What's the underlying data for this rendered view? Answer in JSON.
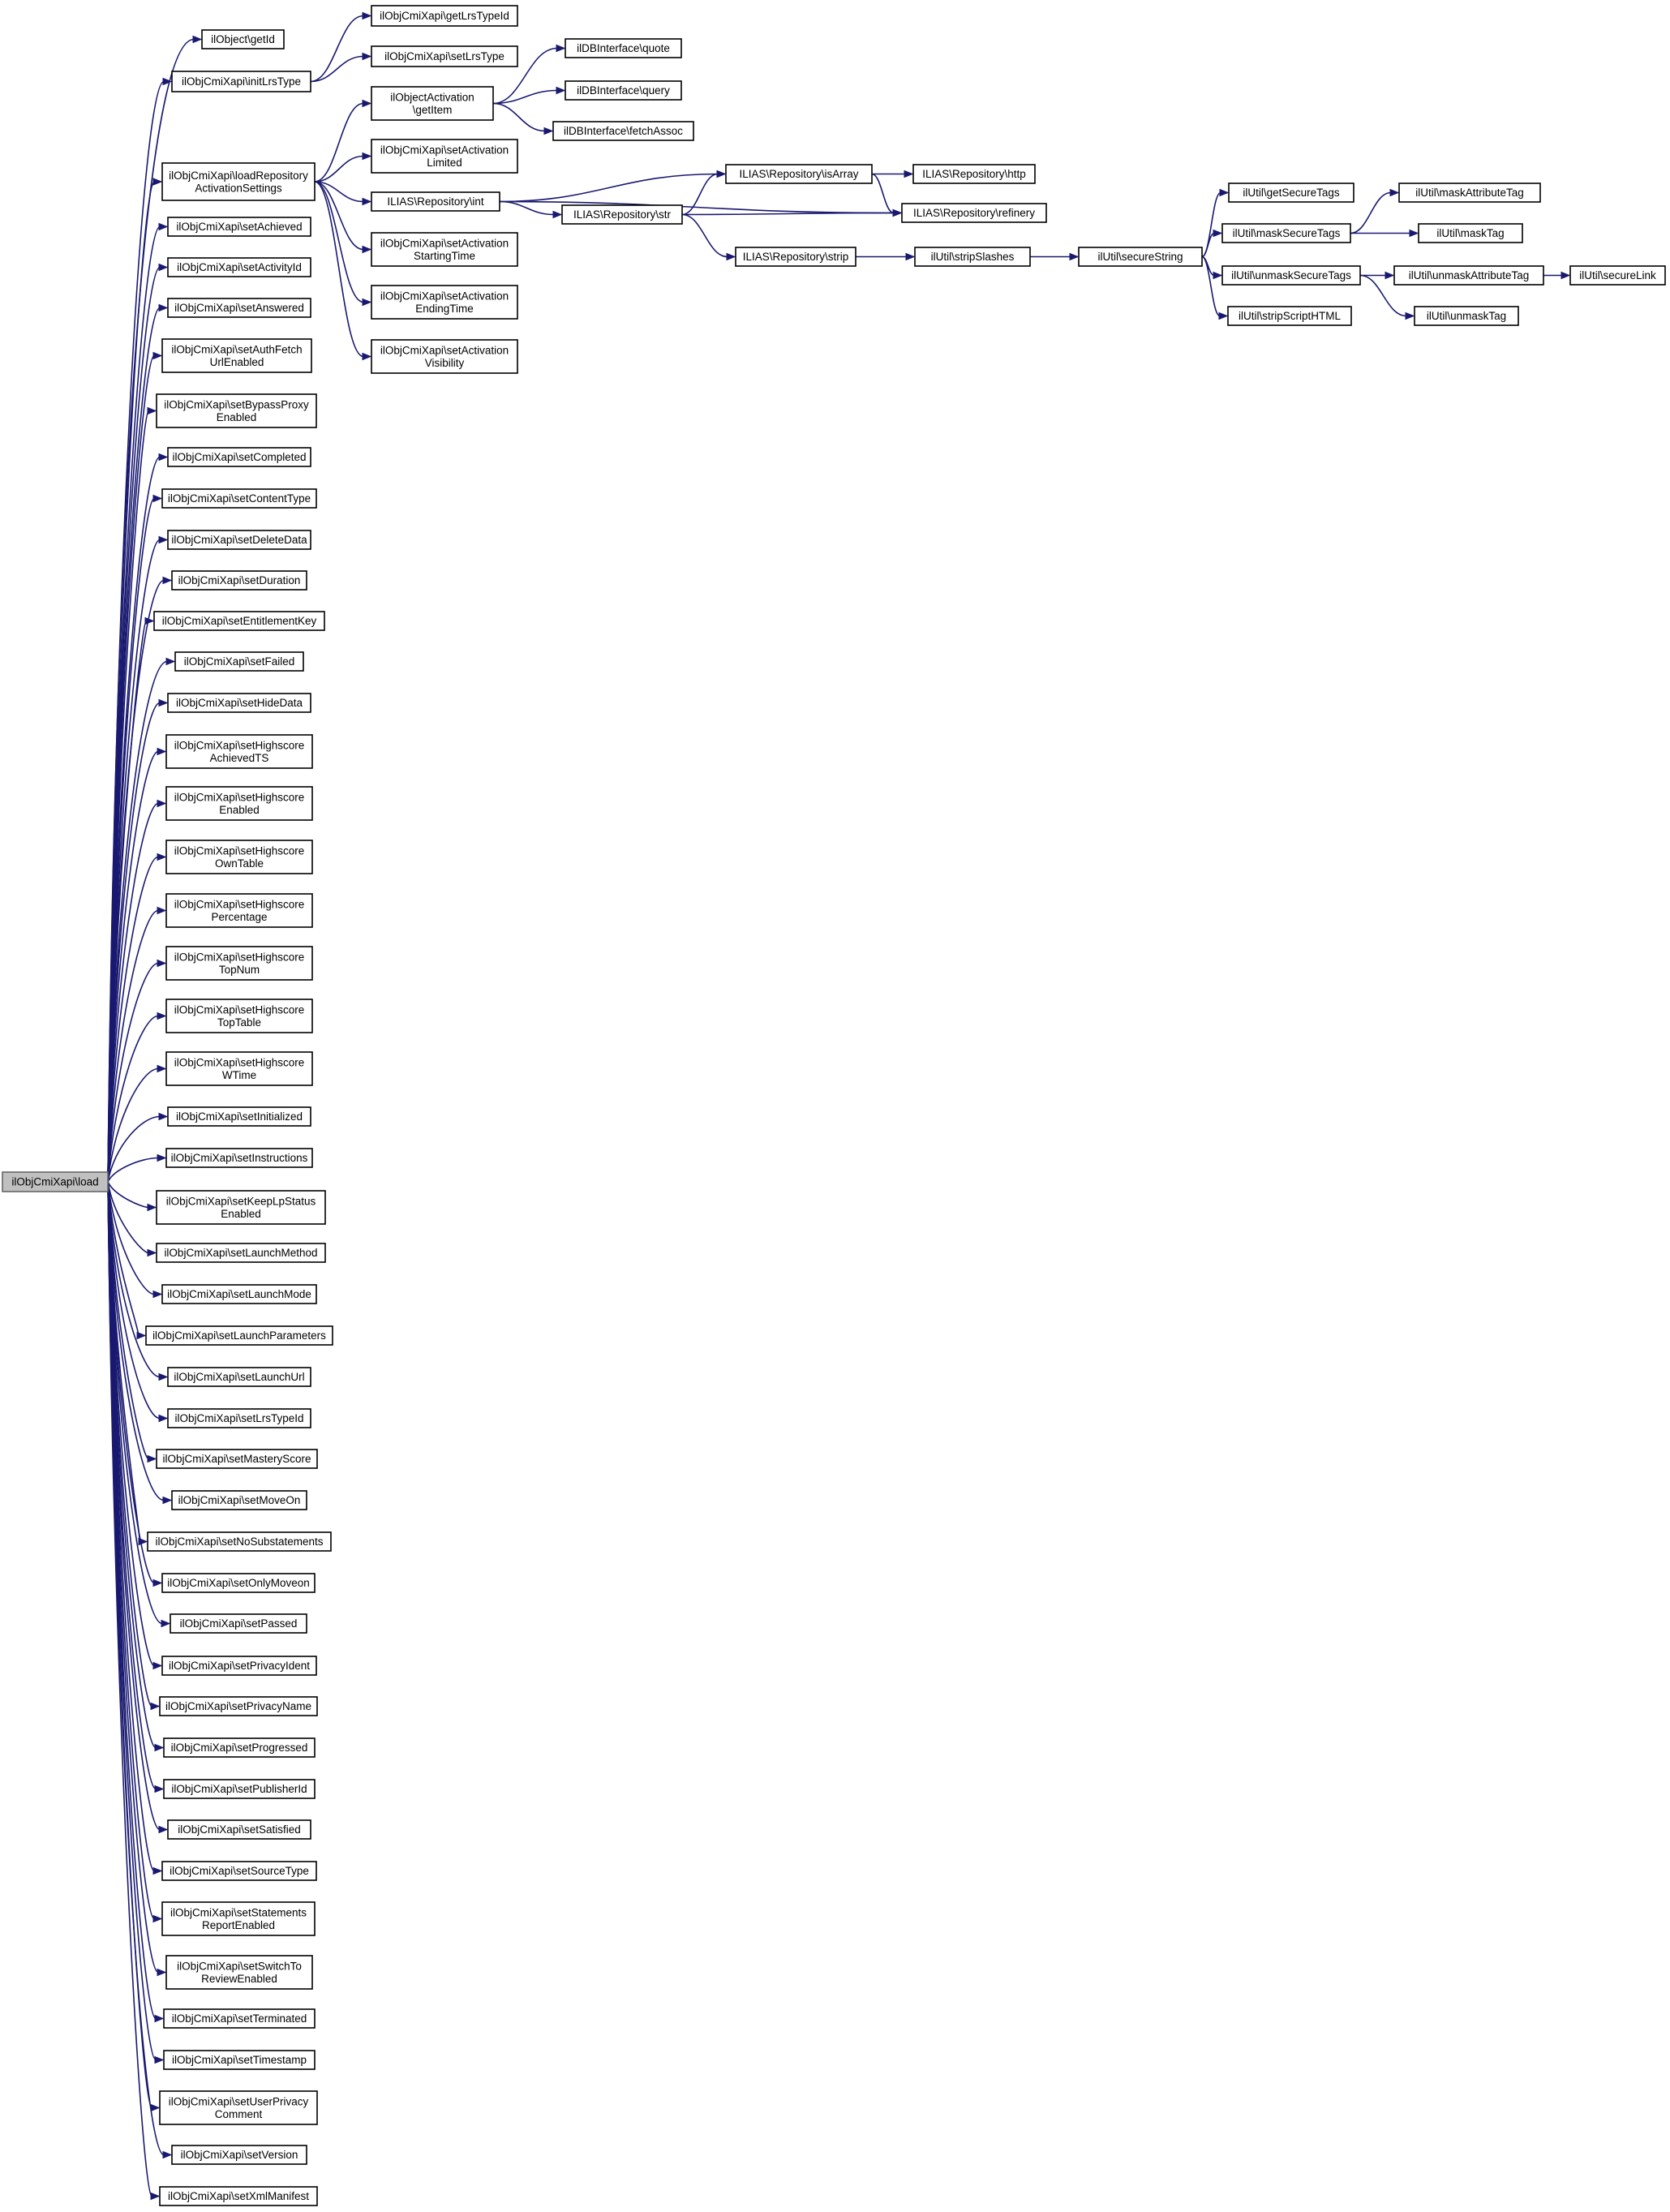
{
  "colors": {
    "edge": "#191970",
    "root_fill": "#c0c0c0",
    "node_border": "#000000",
    "background": "#ffffff"
  },
  "nodes": [
    {
      "id": "root",
      "lines": [
        "ilObjCmiXapi\\load"
      ],
      "root": true
    },
    {
      "id": "getId",
      "lines": [
        "ilObject\\getId"
      ]
    },
    {
      "id": "initLrsType",
      "lines": [
        "ilObjCmiXapi\\initLrsType"
      ]
    },
    {
      "id": "getLrsTypeId",
      "lines": [
        "ilObjCmiXapi\\getLrsTypeId"
      ]
    },
    {
      "id": "setLrsType",
      "lines": [
        "ilObjCmiXapi\\setLrsType"
      ]
    },
    {
      "id": "loadRepo",
      "lines": [
        "ilObjCmiXapi\\loadRepository",
        "ActivationSettings"
      ]
    },
    {
      "id": "getItem",
      "lines": [
        "ilObjectActivation",
        "\\getItem"
      ]
    },
    {
      "id": "quote",
      "lines": [
        "ilDBInterface\\quote"
      ]
    },
    {
      "id": "query",
      "lines": [
        "ilDBInterface\\query"
      ]
    },
    {
      "id": "fetchAssoc",
      "lines": [
        "ilDBInterface\\fetchAssoc"
      ]
    },
    {
      "id": "setActLimited",
      "lines": [
        "ilObjCmiXapi\\setActivation",
        "Limited"
      ]
    },
    {
      "id": "repoInt",
      "lines": [
        "ILIAS\\Repository\\int"
      ]
    },
    {
      "id": "isArray",
      "lines": [
        "ILIAS\\Repository\\isArray"
      ]
    },
    {
      "id": "http",
      "lines": [
        "ILIAS\\Repository\\http"
      ]
    },
    {
      "id": "refinery",
      "lines": [
        "ILIAS\\Repository\\refinery"
      ]
    },
    {
      "id": "repoStr",
      "lines": [
        "ILIAS\\Repository\\str"
      ]
    },
    {
      "id": "repoStrip",
      "lines": [
        "ILIAS\\Repository\\strip"
      ]
    },
    {
      "id": "stripSlashes",
      "lines": [
        "ilUtil\\stripSlashes"
      ]
    },
    {
      "id": "secureString",
      "lines": [
        "ilUtil\\secureString"
      ]
    },
    {
      "id": "getSecureTags",
      "lines": [
        "ilUtil\\getSecureTags"
      ]
    },
    {
      "id": "maskSecureTags",
      "lines": [
        "ilUtil\\maskSecureTags"
      ]
    },
    {
      "id": "maskAttributeTag",
      "lines": [
        "ilUtil\\maskAttributeTag"
      ]
    },
    {
      "id": "maskTag",
      "lines": [
        "ilUtil\\maskTag"
      ]
    },
    {
      "id": "unmaskSecureTags",
      "lines": [
        "ilUtil\\unmaskSecureTags"
      ]
    },
    {
      "id": "unmaskAttributeTag",
      "lines": [
        "ilUtil\\unmaskAttributeTag"
      ]
    },
    {
      "id": "secureLink",
      "lines": [
        "ilUtil\\secureLink"
      ]
    },
    {
      "id": "unmaskTag",
      "lines": [
        "ilUtil\\unmaskTag"
      ]
    },
    {
      "id": "stripScriptHTML",
      "lines": [
        "ilUtil\\stripScriptHTML"
      ]
    },
    {
      "id": "setActStart",
      "lines": [
        "ilObjCmiXapi\\setActivation",
        "StartingTime"
      ]
    },
    {
      "id": "setActEnd",
      "lines": [
        "ilObjCmiXapi\\setActivation",
        "EndingTime"
      ]
    },
    {
      "id": "setActVis",
      "lines": [
        "ilObjCmiXapi\\setActivation",
        "Visibility"
      ]
    },
    {
      "id": "setAchieved",
      "lines": [
        "ilObjCmiXapi\\setAchieved"
      ]
    },
    {
      "id": "setActivityId",
      "lines": [
        "ilObjCmiXapi\\setActivityId"
      ]
    },
    {
      "id": "setAnswered",
      "lines": [
        "ilObjCmiXapi\\setAnswered"
      ]
    },
    {
      "id": "setAuthFetch",
      "lines": [
        "ilObjCmiXapi\\setAuthFetch",
        "UrlEnabled"
      ]
    },
    {
      "id": "setBypassProxy",
      "lines": [
        "ilObjCmiXapi\\setBypassProxy",
        "Enabled"
      ]
    },
    {
      "id": "setCompleted",
      "lines": [
        "ilObjCmiXapi\\setCompleted"
      ]
    },
    {
      "id": "setContentType",
      "lines": [
        "ilObjCmiXapi\\setContentType"
      ]
    },
    {
      "id": "setDeleteData",
      "lines": [
        "ilObjCmiXapi\\setDeleteData"
      ]
    },
    {
      "id": "setDuration",
      "lines": [
        "ilObjCmiXapi\\setDuration"
      ]
    },
    {
      "id": "setEntitlementKey",
      "lines": [
        "ilObjCmiXapi\\setEntitlementKey"
      ]
    },
    {
      "id": "setFailed",
      "lines": [
        "ilObjCmiXapi\\setFailed"
      ]
    },
    {
      "id": "setHideData",
      "lines": [
        "ilObjCmiXapi\\setHideData"
      ]
    },
    {
      "id": "setHsAchievedTS",
      "lines": [
        "ilObjCmiXapi\\setHighscore",
        "AchievedTS"
      ]
    },
    {
      "id": "setHsEnabled",
      "lines": [
        "ilObjCmiXapi\\setHighscore",
        "Enabled"
      ]
    },
    {
      "id": "setHsOwnTable",
      "lines": [
        "ilObjCmiXapi\\setHighscore",
        "OwnTable"
      ]
    },
    {
      "id": "setHsPercentage",
      "lines": [
        "ilObjCmiXapi\\setHighscore",
        "Percentage"
      ]
    },
    {
      "id": "setHsTopNum",
      "lines": [
        "ilObjCmiXapi\\setHighscore",
        "TopNum"
      ]
    },
    {
      "id": "setHsTopTable",
      "lines": [
        "ilObjCmiXapi\\setHighscore",
        "TopTable"
      ]
    },
    {
      "id": "setHsWTime",
      "lines": [
        "ilObjCmiXapi\\setHighscore",
        "WTime"
      ]
    },
    {
      "id": "setInitialized",
      "lines": [
        "ilObjCmiXapi\\setInitialized"
      ]
    },
    {
      "id": "setInstructions",
      "lines": [
        "ilObjCmiXapi\\setInstructions"
      ]
    },
    {
      "id": "setKeepLp",
      "lines": [
        "ilObjCmiXapi\\setKeepLpStatus",
        "Enabled"
      ]
    },
    {
      "id": "setLaunchMethod",
      "lines": [
        "ilObjCmiXapi\\setLaunchMethod"
      ]
    },
    {
      "id": "setLaunchMode",
      "lines": [
        "ilObjCmiXapi\\setLaunchMode"
      ]
    },
    {
      "id": "setLaunchParameters",
      "lines": [
        "ilObjCmiXapi\\setLaunchParameters"
      ]
    },
    {
      "id": "setLaunchUrl",
      "lines": [
        "ilObjCmiXapi\\setLaunchUrl"
      ]
    },
    {
      "id": "setLrsTypeId",
      "lines": [
        "ilObjCmiXapi\\setLrsTypeId"
      ]
    },
    {
      "id": "setMasteryScore",
      "lines": [
        "ilObjCmiXapi\\setMasteryScore"
      ]
    },
    {
      "id": "setMoveOn",
      "lines": [
        "ilObjCmiXapi\\setMoveOn"
      ]
    },
    {
      "id": "setNoSubstatements",
      "lines": [
        "ilObjCmiXapi\\setNoSubstatements"
      ]
    },
    {
      "id": "setOnlyMoveon",
      "lines": [
        "ilObjCmiXapi\\setOnlyMoveon"
      ]
    },
    {
      "id": "setPassed",
      "lines": [
        "ilObjCmiXapi\\setPassed"
      ]
    },
    {
      "id": "setPrivacyIdent",
      "lines": [
        "ilObjCmiXapi\\setPrivacyIdent"
      ]
    },
    {
      "id": "setPrivacyName",
      "lines": [
        "ilObjCmiXapi\\setPrivacyName"
      ]
    },
    {
      "id": "setProgressed",
      "lines": [
        "ilObjCmiXapi\\setProgressed"
      ]
    },
    {
      "id": "setPublisherId",
      "lines": [
        "ilObjCmiXapi\\setPublisherId"
      ]
    },
    {
      "id": "setSatisfied",
      "lines": [
        "ilObjCmiXapi\\setSatisfied"
      ]
    },
    {
      "id": "setSourceType",
      "lines": [
        "ilObjCmiXapi\\setSourceType"
      ]
    },
    {
      "id": "setStatementsReport",
      "lines": [
        "ilObjCmiXapi\\setStatements",
        "ReportEnabled"
      ]
    },
    {
      "id": "setSwitchToReview",
      "lines": [
        "ilObjCmiXapi\\setSwitchTo",
        "ReviewEnabled"
      ]
    },
    {
      "id": "setTerminated",
      "lines": [
        "ilObjCmiXapi\\setTerminated"
      ]
    },
    {
      "id": "setTimestamp",
      "lines": [
        "ilObjCmiXapi\\setTimestamp"
      ]
    },
    {
      "id": "setUserPrivacy",
      "lines": [
        "ilObjCmiXapi\\setUserPrivacy",
        "Comment"
      ]
    },
    {
      "id": "setVersion",
      "lines": [
        "ilObjCmiXapi\\setVersion"
      ]
    },
    {
      "id": "setXmlManifest",
      "lines": [
        "ilObjCmiXapi\\setXmlManifest"
      ]
    }
  ],
  "edges": [
    [
      "root",
      "getId"
    ],
    [
      "root",
      "initLrsType"
    ],
    [
      "root",
      "loadRepo"
    ],
    [
      "root",
      "setAchieved"
    ],
    [
      "root",
      "setActivityId"
    ],
    [
      "root",
      "setAnswered"
    ],
    [
      "root",
      "setAuthFetch"
    ],
    [
      "root",
      "setBypassProxy"
    ],
    [
      "root",
      "setCompleted"
    ],
    [
      "root",
      "setContentType"
    ],
    [
      "root",
      "setDeleteData"
    ],
    [
      "root",
      "setDuration"
    ],
    [
      "root",
      "setEntitlementKey"
    ],
    [
      "root",
      "setFailed"
    ],
    [
      "root",
      "setHideData"
    ],
    [
      "root",
      "setHsAchievedTS"
    ],
    [
      "root",
      "setHsEnabled"
    ],
    [
      "root",
      "setHsOwnTable"
    ],
    [
      "root",
      "setHsPercentage"
    ],
    [
      "root",
      "setHsTopNum"
    ],
    [
      "root",
      "setHsTopTable"
    ],
    [
      "root",
      "setHsWTime"
    ],
    [
      "root",
      "setInitialized"
    ],
    [
      "root",
      "setInstructions"
    ],
    [
      "root",
      "setKeepLp"
    ],
    [
      "root",
      "setLaunchMethod"
    ],
    [
      "root",
      "setLaunchMode"
    ],
    [
      "root",
      "setLaunchParameters"
    ],
    [
      "root",
      "setLaunchUrl"
    ],
    [
      "root",
      "setLrsTypeId"
    ],
    [
      "root",
      "setMasteryScore"
    ],
    [
      "root",
      "setMoveOn"
    ],
    [
      "root",
      "setNoSubstatements"
    ],
    [
      "root",
      "setOnlyMoveon"
    ],
    [
      "root",
      "setPassed"
    ],
    [
      "root",
      "setPrivacyIdent"
    ],
    [
      "root",
      "setPrivacyName"
    ],
    [
      "root",
      "setProgressed"
    ],
    [
      "root",
      "setPublisherId"
    ],
    [
      "root",
      "setSatisfied"
    ],
    [
      "root",
      "setSourceType"
    ],
    [
      "root",
      "setStatementsReport"
    ],
    [
      "root",
      "setSwitchToReview"
    ],
    [
      "root",
      "setTerminated"
    ],
    [
      "root",
      "setTimestamp"
    ],
    [
      "root",
      "setUserPrivacy"
    ],
    [
      "root",
      "setVersion"
    ],
    [
      "root",
      "setXmlManifest"
    ],
    [
      "initLrsType",
      "getLrsTypeId"
    ],
    [
      "initLrsType",
      "setLrsType"
    ],
    [
      "loadRepo",
      "getItem"
    ],
    [
      "loadRepo",
      "setActLimited"
    ],
    [
      "loadRepo",
      "repoInt"
    ],
    [
      "loadRepo",
      "setActStart"
    ],
    [
      "loadRepo",
      "setActEnd"
    ],
    [
      "loadRepo",
      "setActVis"
    ],
    [
      "getItem",
      "quote"
    ],
    [
      "getItem",
      "query"
    ],
    [
      "getItem",
      "fetchAssoc"
    ],
    [
      "repoInt",
      "isArray"
    ],
    [
      "repoInt",
      "repoStr"
    ],
    [
      "repoInt",
      "refinery"
    ],
    [
      "isArray",
      "http"
    ],
    [
      "isArray",
      "refinery"
    ],
    [
      "repoStr",
      "isArray"
    ],
    [
      "repoStr",
      "refinery"
    ],
    [
      "repoStr",
      "repoStrip"
    ],
    [
      "repoStrip",
      "stripSlashes"
    ],
    [
      "stripSlashes",
      "secureString"
    ],
    [
      "secureString",
      "getSecureTags"
    ],
    [
      "secureString",
      "maskSecureTags"
    ],
    [
      "secureString",
      "unmaskSecureTags"
    ],
    [
      "secureString",
      "stripScriptHTML"
    ],
    [
      "maskSecureTags",
      "maskAttributeTag"
    ],
    [
      "maskSecureTags",
      "maskTag"
    ],
    [
      "unmaskSecureTags",
      "unmaskAttributeTag"
    ],
    [
      "unmaskSecureTags",
      "unmaskTag"
    ],
    [
      "unmaskAttributeTag",
      "secureLink"
    ]
  ]
}
